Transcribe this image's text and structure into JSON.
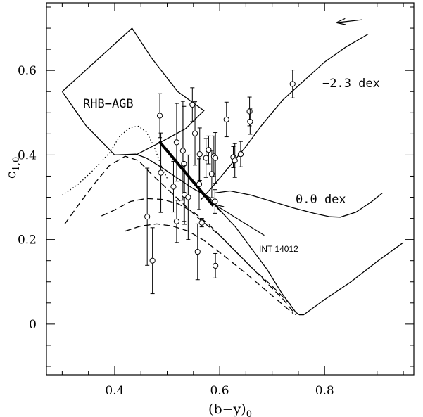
{
  "chart_data": {
    "type": "scatter",
    "title": "",
    "xlabel_main": "(b−y)",
    "xlabel_sub": "0",
    "ylabel_main": "c",
    "ylabel_sub": "1,0",
    "xlim": [
      0.27,
      0.97
    ],
    "ylim": [
      -0.12,
      0.76
    ],
    "x_ticks": [
      0.4,
      0.6,
      0.8
    ],
    "x_tick_labels": [
      "0.4",
      "0.6",
      "0.8"
    ],
    "y_ticks": [
      0,
      0.2,
      0.4,
      0.6
    ],
    "y_tick_labels": [
      "0",
      "0.2",
      "0.4",
      "0.6"
    ],
    "grid": false,
    "annotations": {
      "rhb_agb": "RHB−AGB",
      "metal_poor": "−2.3 dex",
      "solar": "0.0 dex",
      "star": "INT 14012"
    },
    "points": [
      {
        "x": 0.486,
        "y": 0.493,
        "err": 0.052
      },
      {
        "x": 0.488,
        "y": 0.358,
        "err": 0.094
      },
      {
        "x": 0.462,
        "y": 0.254,
        "err": 0.115
      },
      {
        "x": 0.472,
        "y": 0.15,
        "err": 0.078
      },
      {
        "x": 0.512,
        "y": 0.325,
        "err": 0.06
      },
      {
        "x": 0.518,
        "y": 0.43,
        "err": 0.092
      },
      {
        "x": 0.518,
        "y": 0.243,
        "err": 0.05
      },
      {
        "x": 0.53,
        "y": 0.41,
        "err": 0.117
      },
      {
        "x": 0.532,
        "y": 0.379,
        "err": 0.136
      },
      {
        "x": 0.533,
        "y": 0.306,
        "err": 0.07
      },
      {
        "x": 0.54,
        "y": 0.3,
        "err": 0.1
      },
      {
        "x": 0.548,
        "y": 0.519,
        "err": 0.04
      },
      {
        "x": 0.553,
        "y": 0.451,
        "err": 0.075
      },
      {
        "x": 0.558,
        "y": 0.171,
        "err": 0.066
      },
      {
        "x": 0.561,
        "y": 0.331,
        "err": 0.06
      },
      {
        "x": 0.562,
        "y": 0.402,
        "err": 0.062
      },
      {
        "x": 0.566,
        "y": 0.24,
        "err": 0.01
      },
      {
        "x": 0.574,
        "y": 0.393,
        "err": 0.046
      },
      {
        "x": 0.579,
        "y": 0.412,
        "err": 0.033
      },
      {
        "x": 0.585,
        "y": 0.355,
        "err": 0.056
      },
      {
        "x": 0.589,
        "y": 0.397,
        "err": 0.048
      },
      {
        "x": 0.592,
        "y": 0.393,
        "err": 0.06
      },
      {
        "x": 0.591,
        "y": 0.29,
        "err": 0.028
      },
      {
        "x": 0.592,
        "y": 0.138,
        "err": 0.029
      },
      {
        "x": 0.613,
        "y": 0.484,
        "err": 0.041
      },
      {
        "x": 0.626,
        "y": 0.395,
        "err": 0.025
      },
      {
        "x": 0.629,
        "y": 0.387,
        "err": 0.04
      },
      {
        "x": 0.64,
        "y": 0.402,
        "err": 0.03
      },
      {
        "x": 0.657,
        "y": 0.503,
        "err": 0.034
      },
      {
        "x": 0.658,
        "y": 0.479,
        "err": 0.03
      },
      {
        "x": 0.739,
        "y": 0.568,
        "err": 0.033
      }
    ],
    "curves": [
      {
        "style": "solid",
        "points": [
          [
            0.565,
            0.295
          ],
          [
            0.59,
            0.33
          ],
          [
            0.62,
            0.375
          ],
          [
            0.65,
            0.42
          ],
          [
            0.68,
            0.47
          ],
          [
            0.72,
            0.53
          ],
          [
            0.76,
            0.575
          ],
          [
            0.8,
            0.62
          ],
          [
            0.84,
            0.655
          ],
          [
            0.883,
            0.686
          ]
        ]
      },
      {
        "style": "solid",
        "points": [
          [
            0.59,
            0.31
          ],
          [
            0.62,
            0.315
          ],
          [
            0.66,
            0.305
          ],
          [
            0.7,
            0.29
          ],
          [
            0.74,
            0.275
          ],
          [
            0.78,
            0.262
          ],
          [
            0.81,
            0.254
          ],
          [
            0.83,
            0.253
          ],
          [
            0.86,
            0.265
          ],
          [
            0.89,
            0.29
          ],
          [
            0.91,
            0.31
          ]
        ]
      },
      {
        "style": "solid",
        "points": [
          [
            0.4,
            0.4
          ],
          [
            0.44,
            0.402
          ],
          [
            0.46,
            0.393
          ],
          [
            0.49,
            0.37
          ],
          [
            0.52,
            0.345
          ],
          [
            0.55,
            0.32
          ],
          [
            0.58,
            0.3
          ],
          [
            0.6,
            0.27
          ],
          [
            0.63,
            0.23
          ],
          [
            0.66,
            0.18
          ],
          [
            0.69,
            0.13
          ],
          [
            0.72,
            0.07
          ],
          [
            0.745,
            0.028
          ],
          [
            0.752,
            0.022
          ],
          [
            0.76,
            0.022
          ],
          [
            0.8,
            0.058
          ],
          [
            0.85,
            0.1
          ],
          [
            0.9,
            0.148
          ],
          [
            0.95,
            0.193
          ]
        ]
      },
      {
        "style": "dotted",
        "points": [
          [
            0.3,
            0.305
          ],
          [
            0.33,
            0.33
          ],
          [
            0.36,
            0.365
          ],
          [
            0.39,
            0.405
          ],
          [
            0.41,
            0.445
          ],
          [
            0.43,
            0.465
          ],
          [
            0.445,
            0.468
          ],
          [
            0.46,
            0.455
          ],
          [
            0.475,
            0.42
          ],
          [
            0.49,
            0.37
          ],
          [
            0.5,
            0.345
          ]
        ]
      },
      {
        "style": "dashed",
        "points": [
          [
            0.305,
            0.237
          ],
          [
            0.33,
            0.28
          ],
          [
            0.36,
            0.33
          ],
          [
            0.39,
            0.375
          ],
          [
            0.42,
            0.397
          ],
          [
            0.445,
            0.387
          ],
          [
            0.47,
            0.355
          ],
          [
            0.5,
            0.32
          ],
          [
            0.53,
            0.285
          ],
          [
            0.56,
            0.25
          ],
          [
            0.6,
            0.21
          ],
          [
            0.64,
            0.16
          ],
          [
            0.68,
            0.11
          ],
          [
            0.72,
            0.06
          ],
          [
            0.745,
            0.022
          ]
        ]
      },
      {
        "style": "dashed",
        "points": [
          [
            0.375,
            0.256
          ],
          [
            0.4,
            0.27
          ],
          [
            0.43,
            0.29
          ],
          [
            0.46,
            0.297
          ],
          [
            0.49,
            0.295
          ],
          [
            0.52,
            0.285
          ],
          [
            0.55,
            0.265
          ],
          [
            0.58,
            0.235
          ],
          [
            0.62,
            0.185
          ],
          [
            0.66,
            0.135
          ],
          [
            0.7,
            0.09
          ],
          [
            0.74,
            0.04
          ]
        ]
      },
      {
        "style": "dashed",
        "points": [
          [
            0.42,
            0.22
          ],
          [
            0.45,
            0.232
          ],
          [
            0.48,
            0.237
          ],
          [
            0.51,
            0.232
          ],
          [
            0.54,
            0.22
          ],
          [
            0.57,
            0.198
          ],
          [
            0.61,
            0.16
          ],
          [
            0.65,
            0.12
          ],
          [
            0.69,
            0.078
          ],
          [
            0.74,
            0.025
          ]
        ]
      }
    ],
    "rhb_agb_polygon": [
      [
        0.3,
        0.55
      ],
      [
        0.433,
        0.7
      ],
      [
        0.47,
        0.63
      ],
      [
        0.52,
        0.55
      ],
      [
        0.57,
        0.505
      ],
      [
        0.535,
        0.462
      ],
      [
        0.49,
        0.432
      ],
      [
        0.44,
        0.4
      ],
      [
        0.4,
        0.4
      ],
      [
        0.345,
        0.47
      ],
      [
        0.3,
        0.55
      ]
    ],
    "thick_segment": [
      [
        0.485,
        0.432
      ],
      [
        0.588,
        0.28
      ]
    ],
    "arrows": [
      {
        "from": [
          0.685,
          0.21
        ],
        "to": [
          0.59,
          0.283
        ]
      },
      {
        "from": [
          0.872,
          0.72
        ],
        "to": [
          0.822,
          0.713
        ]
      }
    ]
  }
}
